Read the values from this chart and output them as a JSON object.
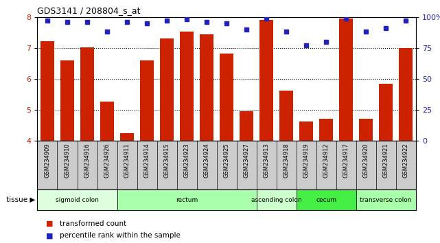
{
  "title": "GDS3141 / 208804_s_at",
  "samples": [
    "GSM234909",
    "GSM234910",
    "GSM234916",
    "GSM234926",
    "GSM234911",
    "GSM234914",
    "GSM234915",
    "GSM234923",
    "GSM234924",
    "GSM234925",
    "GSM234927",
    "GSM234913",
    "GSM234918",
    "GSM234919",
    "GSM234912",
    "GSM234917",
    "GSM234920",
    "GSM234921",
    "GSM234922"
  ],
  "transformed_count": [
    7.22,
    6.6,
    7.02,
    5.27,
    4.25,
    6.59,
    7.3,
    7.52,
    7.44,
    6.82,
    4.97,
    7.9,
    5.62,
    4.63,
    4.72,
    7.95,
    4.72,
    5.84,
    6.99
  ],
  "percentile_rank": [
    97,
    96,
    96,
    88,
    96,
    95,
    97,
    98,
    96,
    95,
    90,
    99,
    88,
    77,
    80,
    99,
    88,
    91,
    97
  ],
  "ylim_left": [
    4.0,
    8.0
  ],
  "bar_bottom": 4.0,
  "ylim_right": [
    0,
    100
  ],
  "yticks_left": [
    4,
    5,
    6,
    7,
    8
  ],
  "yticks_right": [
    0,
    25,
    50,
    75,
    100
  ],
  "ytick_labels_right": [
    "0",
    "25",
    "50",
    "75",
    "100%"
  ],
  "bar_color": "#cc2200",
  "dot_color": "#2222bb",
  "tissue_groups": [
    {
      "label": "sigmoid colon",
      "start": 0,
      "end": 3,
      "color": "#ddffdd"
    },
    {
      "label": "rectum",
      "start": 4,
      "end": 10,
      "color": "#aaffaa"
    },
    {
      "label": "ascending colon",
      "start": 11,
      "end": 12,
      "color": "#ccffcc"
    },
    {
      "label": "cecum",
      "start": 13,
      "end": 15,
      "color": "#44ee44"
    },
    {
      "label": "transverse colon",
      "start": 16,
      "end": 18,
      "color": "#aaffaa"
    }
  ],
  "legend_bar_label": "transformed count",
  "legend_dot_label": "percentile rank within the sample",
  "tick_label_color_left": "#cc2200",
  "tick_label_color_right": "#2222bb",
  "grid_dotted_at": [
    5,
    6,
    7
  ],
  "sample_box_color": "#cccccc",
  "sample_box_border": "#000000"
}
